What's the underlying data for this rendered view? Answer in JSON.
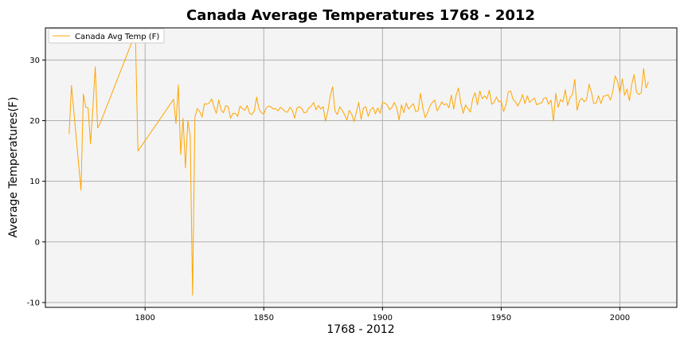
{
  "chart_data": {
    "type": "line",
    "title": "Canada Average Temperatures 1768 - 2012",
    "xlabel": "1768 - 2012",
    "ylabel": "Average Temperatures(F)",
    "xlim": [
      1758,
      2024
    ],
    "ylim": [
      -10.8,
      35.3
    ],
    "xticks": [
      1800,
      1850,
      1900,
      1950,
      2000
    ],
    "yticks": [
      -10,
      0,
      10,
      20,
      30
    ],
    "grid": true,
    "background": "#f4f4f4",
    "legend_position": "top-left",
    "series": [
      {
        "name": "Canada Avg Temp (F)",
        "color": "#ffa500",
        "x": [
          1768,
          1769,
          1773,
          1774,
          1775,
          1776,
          1777,
          1778,
          1779,
          1780,
          1781,
          1795,
          1796,
          1797,
          1812,
          1813,
          1814,
          1815,
          1816,
          1817,
          1818,
          1819,
          1820,
          1821,
          1822,
          1823,
          1824,
          1825,
          1826,
          1827,
          1828,
          1829,
          1830,
          1831,
          1832,
          1833,
          1834,
          1835,
          1836,
          1837,
          1838,
          1839,
          1840,
          1841,
          1842,
          1843,
          1844,
          1845,
          1846,
          1847,
          1848,
          1849,
          1850,
          1851,
          1852,
          1853,
          1854,
          1855,
          1856,
          1857,
          1858,
          1859,
          1860,
          1861,
          1862,
          1863,
          1864,
          1865,
          1866,
          1867,
          1868,
          1869,
          1870,
          1871,
          1872,
          1873,
          1874,
          1875,
          1876,
          1877,
          1878,
          1879,
          1880,
          1881,
          1882,
          1883,
          1884,
          1885,
          1886,
          1887,
          1888,
          1889,
          1890,
          1891,
          1892,
          1893,
          1894,
          1895,
          1896,
          1897,
          1898,
          1899,
          1900,
          1901,
          1902,
          1903,
          1904,
          1905,
          1906,
          1907,
          1908,
          1909,
          1910,
          1911,
          1912,
          1913,
          1914,
          1915,
          1916,
          1917,
          1918,
          1919,
          1920,
          1921,
          1922,
          1923,
          1924,
          1925,
          1926,
          1927,
          1928,
          1929,
          1930,
          1931,
          1932,
          1933,
          1934,
          1935,
          1936,
          1937,
          1938,
          1939,
          1940,
          1941,
          1942,
          1943,
          1944,
          1945,
          1946,
          1947,
          1948,
          1949,
          1950,
          1951,
          1952,
          1953,
          1954,
          1955,
          1956,
          1957,
          1958,
          1959,
          1960,
          1961,
          1962,
          1963,
          1964,
          1965,
          1966,
          1967,
          1968,
          1969,
          1970,
          1971,
          1972,
          1973,
          1974,
          1975,
          1976,
          1977,
          1978,
          1979,
          1980,
          1981,
          1982,
          1983,
          1984,
          1985,
          1986,
          1987,
          1988,
          1989,
          1990,
          1991,
          1992,
          1993,
          1994,
          1995,
          1996,
          1997,
          1998,
          1999,
          2000,
          2001,
          2002,
          2003,
          2004,
          2005,
          2006,
          2007,
          2008,
          2009,
          2010,
          2011,
          2012
        ],
        "y": [
          17.8,
          25.8,
          8.5,
          24.4,
          22.2,
          22.1,
          16.2,
          22.0,
          28.9,
          18.8,
          19.5,
          33.5,
          32.7,
          15.0,
          23.5,
          19.5,
          25.9,
          14.4,
          20.4,
          12.2,
          20.0,
          17.5,
          -8.8,
          20.6,
          22.0,
          21.5,
          20.6,
          22.8,
          22.7,
          22.9,
          23.6,
          22.3,
          21.2,
          23.4,
          21.8,
          21.3,
          22.5,
          22.3,
          20.4,
          21.2,
          21.2,
          20.7,
          22.4,
          22.0,
          21.7,
          22.5,
          21.2,
          21.0,
          21.6,
          23.9,
          21.9,
          21.3,
          21.1,
          22.1,
          22.4,
          22.3,
          21.9,
          22.0,
          21.6,
          22.2,
          21.9,
          21.5,
          21.4,
          22.2,
          21.7,
          20.4,
          22.1,
          22.3,
          22.0,
          21.3,
          21.4,
          22.1,
          22.4,
          23.0,
          21.8,
          22.5,
          21.9,
          22.3,
          19.9,
          21.6,
          24.1,
          25.6,
          21.6,
          21.0,
          22.3,
          21.7,
          21.0,
          20.1,
          21.7,
          21.1,
          19.8,
          21.4,
          23.0,
          20.2,
          22.1,
          22.3,
          20.7,
          21.8,
          22.2,
          21.1,
          22.1,
          21.2,
          23.0,
          22.9,
          22.6,
          21.8,
          22.2,
          23.0,
          22.1,
          20.1,
          22.6,
          21.3,
          22.9,
          21.9,
          22.4,
          22.8,
          21.5,
          21.6,
          24.5,
          22.1,
          20.5,
          21.3,
          22.4,
          23.0,
          23.4,
          21.6,
          22.3,
          23.1,
          22.6,
          22.8,
          22.1,
          24.2,
          21.9,
          24.2,
          25.4,
          22.9,
          21.2,
          22.6,
          22.0,
          21.4,
          23.6,
          24.6,
          22.6,
          24.9,
          23.6,
          24.1,
          23.6,
          25.0,
          22.7,
          23.0,
          23.9,
          23.1,
          23.3,
          21.5,
          22.6,
          24.7,
          24.9,
          23.5,
          23.1,
          22.4,
          23.2,
          24.3,
          22.8,
          24.1,
          23.0,
          23.4,
          23.7,
          22.6,
          22.8,
          22.9,
          23.7,
          23.8,
          22.7,
          23.4,
          19.9,
          24.5,
          22.2,
          23.5,
          23.1,
          25.1,
          22.5,
          23.8,
          24.3,
          26.8,
          21.7,
          23.3,
          23.7,
          23.1,
          23.5,
          26.0,
          24.7,
          22.8,
          22.9,
          24.1,
          22.8,
          24.0,
          24.1,
          24.3,
          23.4,
          24.7,
          27.4,
          26.5,
          24.5,
          26.9,
          24.2,
          25.2,
          23.3,
          26.0,
          27.6,
          24.7,
          24.3,
          24.6,
          28.6,
          25.4,
          26.4
        ]
      }
    ]
  }
}
